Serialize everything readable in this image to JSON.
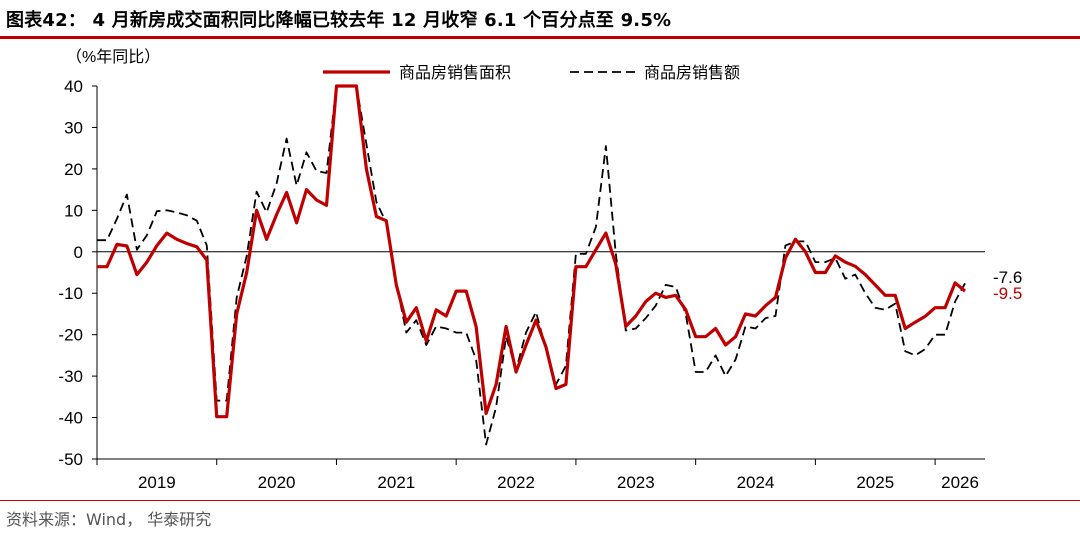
{
  "title": "图表42： 4 月新房成交面积同比降幅已较去年 12 月收窄 6.1 个百分点至 9.5%",
  "source": "资料来源：Wind， 华泰研究",
  "colors": {
    "accent": "#c00000",
    "area_series": "#c00000",
    "amount_series": "#000000"
  },
  "chart_data": {
    "type": "line",
    "ylabel": "（%年同比）",
    "ylim": [
      -50,
      40
    ],
    "yticks": [
      40,
      30,
      20,
      10,
      0,
      -10,
      -20,
      -30,
      -40,
      -50
    ],
    "ytick_labels": [
      "40",
      "30",
      "20",
      "10",
      "0",
      "-10",
      "-20",
      "-30",
      "-40",
      "-50"
    ],
    "xlim": [
      "2019-01",
      "2026-06"
    ],
    "xticks": [
      "2019",
      "2020",
      "2021",
      "2022",
      "2023",
      "2024",
      "2025",
      "2026"
    ],
    "grid": false,
    "legend_position": "top",
    "series": [
      {
        "name": "商品房销售面积",
        "style": "solid",
        "color": "#c00000",
        "points": [
          [
            "2019-01",
            -3.6
          ],
          [
            "2019-02",
            -3.6
          ],
          [
            "2019-03",
            1.8
          ],
          [
            "2019-04",
            1.4
          ],
          [
            "2019-05",
            -5.5
          ],
          [
            "2019-06",
            -2.5
          ],
          [
            "2019-07",
            1.5
          ],
          [
            "2019-08",
            4.5
          ],
          [
            "2019-09",
            3.0
          ],
          [
            "2019-10",
            2.0
          ],
          [
            "2019-11",
            1.2
          ],
          [
            "2019-12",
            -2.0
          ],
          [
            "2020-01",
            -39.8
          ],
          [
            "2020-02",
            -39.8
          ],
          [
            "2020-03",
            -15.0
          ],
          [
            "2020-04",
            -5.0
          ],
          [
            "2020-05",
            10.0
          ],
          [
            "2020-06",
            3.0
          ],
          [
            "2020-07",
            9.0
          ],
          [
            "2020-08",
            14.3
          ],
          [
            "2020-09",
            7.0
          ],
          [
            "2020-10",
            15.0
          ],
          [
            "2020-11",
            12.5
          ],
          [
            "2020-12",
            11.2
          ],
          [
            "2021-01",
            40.0
          ],
          [
            "2021-02",
            40.0
          ],
          [
            "2021-03",
            40.0
          ],
          [
            "2021-04",
            20.0
          ],
          [
            "2021-05",
            8.5
          ],
          [
            "2021-06",
            7.5
          ],
          [
            "2021-07",
            -8.0
          ],
          [
            "2021-08",
            -17.0
          ],
          [
            "2021-09",
            -13.5
          ],
          [
            "2021-10",
            -21.5
          ],
          [
            "2021-11",
            -14.0
          ],
          [
            "2021-12",
            -15.5
          ],
          [
            "2022-01",
            -9.5
          ],
          [
            "2022-02",
            -9.5
          ],
          [
            "2022-03",
            -18.0
          ],
          [
            "2022-04",
            -39.0
          ],
          [
            "2022-05",
            -32.0
          ],
          [
            "2022-06",
            -18.0
          ],
          [
            "2022-07",
            -29.0
          ],
          [
            "2022-08",
            -22.5
          ],
          [
            "2022-09",
            -16.5
          ],
          [
            "2022-10",
            -23.0
          ],
          [
            "2022-11",
            -33.0
          ],
          [
            "2022-12",
            -32.0
          ],
          [
            "2023-01",
            -3.6
          ],
          [
            "2023-02",
            -3.6
          ],
          [
            "2023-03",
            0.5
          ],
          [
            "2023-04",
            4.5
          ],
          [
            "2023-05",
            -3.0
          ],
          [
            "2023-06",
            -18.0
          ],
          [
            "2023-07",
            -15.5
          ],
          [
            "2023-08",
            -12.0
          ],
          [
            "2023-09",
            -10.0
          ],
          [
            "2023-10",
            -11.0
          ],
          [
            "2023-11",
            -10.5
          ],
          [
            "2023-12",
            -14.0
          ],
          [
            "2024-01",
            -20.5
          ],
          [
            "2024-02",
            -20.5
          ],
          [
            "2024-03",
            -18.5
          ],
          [
            "2024-04",
            -22.5
          ],
          [
            "2024-05",
            -20.5
          ],
          [
            "2024-06",
            -15.0
          ],
          [
            "2024-07",
            -15.5
          ],
          [
            "2024-08",
            -13.0
          ],
          [
            "2024-09",
            -11.0
          ],
          [
            "2024-10",
            -1.5
          ],
          [
            "2024-11",
            3.0
          ],
          [
            "2024-12",
            0.0
          ],
          [
            "2025-01",
            -5.0
          ],
          [
            "2025-02",
            -5.0
          ],
          [
            "2025-03",
            -1.0
          ],
          [
            "2025-04",
            -2.5
          ],
          [
            "2025-05",
            -3.5
          ],
          [
            "2025-06",
            -5.5
          ],
          [
            "2025-07",
            -8.0
          ],
          [
            "2025-08",
            -10.5
          ],
          [
            "2025-09",
            -10.5
          ],
          [
            "2025-10",
            -18.5
          ],
          [
            "2025-11",
            -17.0
          ],
          [
            "2025-12",
            -15.6
          ],
          [
            "2026-01",
            -13.5
          ],
          [
            "2026-02",
            -13.5
          ],
          [
            "2026-03",
            -7.5
          ],
          [
            "2026-04",
            -9.5
          ]
        ],
        "end_label": "-9.5"
      },
      {
        "name": "商品房销售额",
        "style": "dashed",
        "color": "#000000",
        "points": [
          [
            "2019-01",
            2.8
          ],
          [
            "2019-02",
            2.8
          ],
          [
            "2019-03",
            8.0
          ],
          [
            "2019-04",
            13.8
          ],
          [
            "2019-05",
            0.5
          ],
          [
            "2019-06",
            4.0
          ],
          [
            "2019-07",
            9.8
          ],
          [
            "2019-08",
            10.0
          ],
          [
            "2019-09",
            9.5
          ],
          [
            "2019-10",
            8.8
          ],
          [
            "2019-11",
            7.5
          ],
          [
            "2019-12",
            1.5
          ],
          [
            "2020-01",
            -35.9
          ],
          [
            "2020-02",
            -35.9
          ],
          [
            "2020-03",
            -11.0
          ],
          [
            "2020-04",
            -1.0
          ],
          [
            "2020-05",
            14.5
          ],
          [
            "2020-06",
            9.5
          ],
          [
            "2020-07",
            16.5
          ],
          [
            "2020-08",
            27.3
          ],
          [
            "2020-09",
            16.0
          ],
          [
            "2020-10",
            24.0
          ],
          [
            "2020-11",
            19.5
          ],
          [
            "2020-12",
            19.0
          ],
          [
            "2021-01",
            40.0
          ],
          [
            "2021-02",
            40.0
          ],
          [
            "2021-03",
            40.0
          ],
          [
            "2021-04",
            26.0
          ],
          [
            "2021-05",
            12.0
          ],
          [
            "2021-06",
            7.0
          ],
          [
            "2021-07",
            -7.5
          ],
          [
            "2021-08",
            -19.5
          ],
          [
            "2021-09",
            -16.5
          ],
          [
            "2021-10",
            -22.5
          ],
          [
            "2021-11",
            -18.0
          ],
          [
            "2021-12",
            -18.5
          ],
          [
            "2022-01",
            -19.5
          ],
          [
            "2022-02",
            -19.5
          ],
          [
            "2022-03",
            -26.0
          ],
          [
            "2022-04",
            -46.5
          ],
          [
            "2022-05",
            -37.5
          ],
          [
            "2022-06",
            -20.5
          ],
          [
            "2022-07",
            -28.5
          ],
          [
            "2022-08",
            -19.5
          ],
          [
            "2022-09",
            -14.5
          ],
          [
            "2022-10",
            -23.5
          ],
          [
            "2022-11",
            -32.0
          ],
          [
            "2022-12",
            -27.5
          ],
          [
            "2023-01",
            -0.5
          ],
          [
            "2023-02",
            -0.5
          ],
          [
            "2023-03",
            6.0
          ],
          [
            "2023-04",
            25.5
          ],
          [
            "2023-05",
            -0.5
          ],
          [
            "2023-06",
            -19.0
          ],
          [
            "2023-07",
            -18.5
          ],
          [
            "2023-08",
            -16.0
          ],
          [
            "2023-09",
            -13.0
          ],
          [
            "2023-10",
            -8.0
          ],
          [
            "2023-11",
            -8.5
          ],
          [
            "2023-12",
            -15.0
          ],
          [
            "2024-01",
            -29.0
          ],
          [
            "2024-02",
            -29.0
          ],
          [
            "2024-03",
            -25.0
          ],
          [
            "2024-04",
            -30.0
          ],
          [
            "2024-05",
            -26.0
          ],
          [
            "2024-06",
            -18.0
          ],
          [
            "2024-07",
            -18.5
          ],
          [
            "2024-08",
            -16.0
          ],
          [
            "2024-09",
            -15.5
          ],
          [
            "2024-10",
            1.5
          ],
          [
            "2024-11",
            2.5
          ],
          [
            "2024-12",
            2.5
          ],
          [
            "2025-01",
            -2.5
          ],
          [
            "2025-02",
            -2.5
          ],
          [
            "2025-03",
            -1.5
          ],
          [
            "2025-04",
            -6.5
          ],
          [
            "2025-05",
            -5.5
          ],
          [
            "2025-06",
            -10.0
          ],
          [
            "2025-07",
            -13.5
          ],
          [
            "2025-08",
            -14.0
          ],
          [
            "2025-09",
            -12.5
          ],
          [
            "2025-10",
            -24.0
          ],
          [
            "2025-11",
            -25.0
          ],
          [
            "2025-12",
            -23.5
          ],
          [
            "2026-01",
            -20.0
          ],
          [
            "2026-02",
            -20.0
          ],
          [
            "2026-03",
            -12.0
          ],
          [
            "2026-04",
            -7.6
          ]
        ],
        "end_label": "-7.6"
      }
    ]
  }
}
